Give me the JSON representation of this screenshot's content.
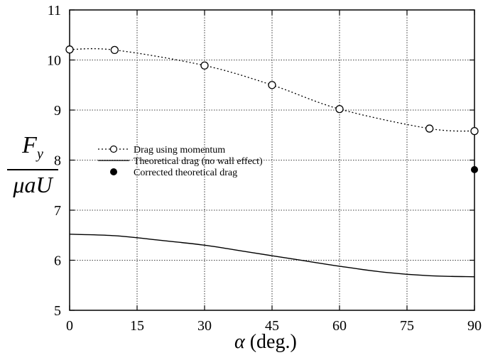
{
  "chart_data": {
    "type": "line",
    "xlabel_symbol": "α",
    "xlabel_unit": "(deg.)",
    "ylabel_num_main": "F",
    "ylabel_num_sub": "y",
    "ylabel_den": "μaU",
    "xlim": [
      0,
      90
    ],
    "ylim": [
      5,
      11
    ],
    "xticks": [
      0,
      15,
      30,
      45,
      60,
      75,
      90
    ],
    "yticks": [
      5,
      6,
      7,
      8,
      9,
      10,
      11
    ],
    "grid": true,
    "legend_position": "left-center",
    "series": [
      {
        "name": "Drag using momentum",
        "style": "dotted line with open circles",
        "x": [
          0,
          10,
          30,
          45,
          60,
          80,
          90
        ],
        "y": [
          10.21,
          10.2,
          9.89,
          9.5,
          9.02,
          8.63,
          8.58
        ]
      },
      {
        "name": "Theoretical drag (no wall effect)",
        "style": "solid line",
        "x": [
          0,
          10,
          20,
          30,
          40,
          50,
          60,
          70,
          80,
          90
        ],
        "y": [
          6.52,
          6.49,
          6.4,
          6.3,
          6.16,
          6.02,
          5.88,
          5.76,
          5.69,
          5.67
        ]
      },
      {
        "name": "Corrected theoretical drag",
        "style": "filled circle",
        "x": [
          90
        ],
        "y": [
          7.81
        ]
      }
    ]
  }
}
